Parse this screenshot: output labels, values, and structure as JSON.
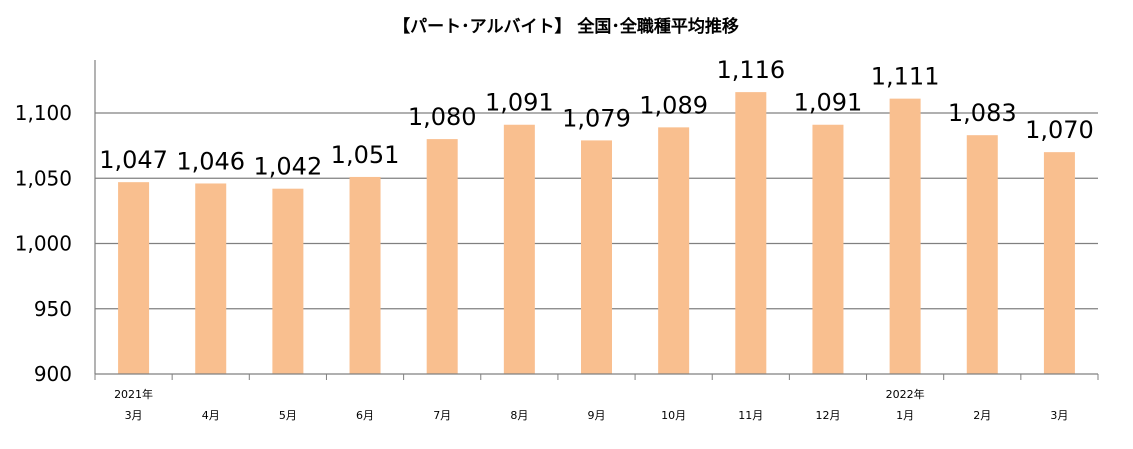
{
  "chart_data": {
    "type": "bar",
    "title": "【パート･アルバイト】 全国･全職種平均推移",
    "categories": [
      "3月",
      "4月",
      "5月",
      "6月",
      "7月",
      "8月",
      "9月",
      "10月",
      "11月",
      "12月",
      "1月",
      "2月",
      "3月"
    ],
    "category_groups": [
      {
        "label": "2021年",
        "index": 0
      },
      {
        "label": "2022年",
        "index": 10
      }
    ],
    "values": [
      1047,
      1046,
      1042,
      1051,
      1080,
      1091,
      1079,
      1089,
      1116,
      1091,
      1111,
      1083,
      1070
    ],
    "data_labels": [
      "1,047",
      "1,046",
      "1,042",
      "1,051",
      "1,080",
      "1,091",
      "1,079",
      "1,089",
      "1,116",
      "1,091",
      "1,111",
      "1,083",
      "1,070"
    ],
    "ylim": [
      900,
      1100
    ],
    "yticks": [
      900,
      950,
      1000,
      1050,
      1100
    ],
    "ytick_labels": [
      "900",
      "950",
      "1,000",
      "1,050",
      "1,100"
    ],
    "xlabel": "",
    "ylabel": "",
    "grid": true,
    "bar_color": "#F9BF8F",
    "gridline_color": "#808080"
  }
}
